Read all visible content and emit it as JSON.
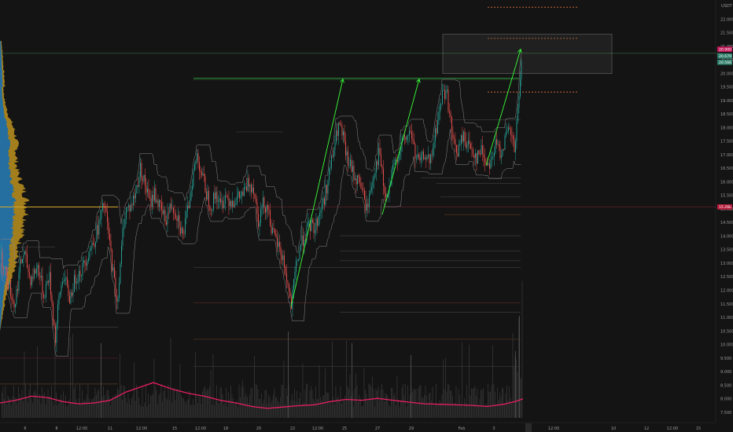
{
  "header": {
    "currency": "USDT"
  },
  "chart_data": {
    "type": "candlestick",
    "y_axis": {
      "ylim": [
        7.3,
        22.6
      ],
      "ticks": [
        "22.000",
        "21.500",
        "21.000",
        "20.500",
        "20.000",
        "19.500",
        "19.000",
        "18.500",
        "18.000",
        "17.500",
        "17.000",
        "16.500",
        "16.000",
        "15.500",
        "15.000",
        "14.500",
        "14.000",
        "13.500",
        "13.000",
        "12.500",
        "12.000",
        "11.500",
        "11.000",
        "10.500",
        "10.000",
        "9.500",
        "9.000",
        "8.500",
        "8.000",
        "7.500"
      ]
    },
    "x_axis": {
      "labels": [
        "6",
        "8",
        "12:00",
        "11",
        "12:00",
        "15",
        "12:00",
        "18",
        "20",
        "22",
        "12:00",
        "25",
        "27",
        "29",
        "Feb",
        "3",
        "5",
        "12:00",
        "10",
        "12",
        "12:00",
        "15"
      ],
      "label_positions": [
        32,
        72,
        104,
        140,
        180,
        222,
        255,
        287,
        329,
        372,
        404,
        438,
        480,
        523,
        587,
        628,
        673,
        704,
        780,
        822,
        855,
        888
      ],
      "plot_right": 668
    },
    "price_badges": [
      {
        "value": "20.900",
        "color": "#c2185b"
      },
      {
        "value": "20.679",
        "color": "#2e7d6b"
      },
      {
        "value": "20.566",
        "color": "#2e7d6b"
      },
      {
        "value": "15.26k",
        "color": "#b71c3c"
      }
    ],
    "current_price": 20.9,
    "poc_price": 15.08,
    "price_path": [
      [
        0,
        13.4
      ],
      [
        10,
        12.3
      ],
      [
        18,
        11.4
      ],
      [
        25,
        12.9
      ],
      [
        30,
        13.4
      ],
      [
        38,
        12.4
      ],
      [
        48,
        12.9
      ],
      [
        55,
        11.8
      ],
      [
        62,
        12.6
      ],
      [
        70,
        10.2
      ],
      [
        74,
        11.6
      ],
      [
        80,
        12.6
      ],
      [
        88,
        11.7
      ],
      [
        96,
        12.5
      ],
      [
        104,
        12.8
      ],
      [
        112,
        13.4
      ],
      [
        120,
        13.9
      ],
      [
        127,
        14.6
      ],
      [
        132,
        15.2
      ],
      [
        136,
        14.4
      ],
      [
        142,
        13.0
      ],
      [
        148,
        11.6
      ],
      [
        152,
        12.6
      ],
      [
        156,
        14.4
      ],
      [
        160,
        15.0
      ],
      [
        166,
        15.1
      ],
      [
        172,
        15.6
      ],
      [
        178,
        16.5
      ],
      [
        184,
        15.9
      ],
      [
        190,
        15.2
      ],
      [
        196,
        15.6
      ],
      [
        202,
        15.1
      ],
      [
        210,
        14.6
      ],
      [
        218,
        15.2
      ],
      [
        226,
        14.7
      ],
      [
        232,
        14.0
      ],
      [
        238,
        14.9
      ],
      [
        244,
        16.1
      ],
      [
        250,
        17.0
      ],
      [
        256,
        16.3
      ],
      [
        262,
        15.6
      ],
      [
        268,
        15.1
      ],
      [
        274,
        15.6
      ],
      [
        280,
        15.1
      ],
      [
        286,
        15.5
      ],
      [
        294,
        15.3
      ],
      [
        302,
        15.4
      ],
      [
        310,
        15.6
      ],
      [
        316,
        16.0
      ],
      [
        322,
        15.8
      ],
      [
        328,
        14.6
      ],
      [
        334,
        15.2
      ],
      [
        340,
        15.1
      ],
      [
        346,
        14.1
      ],
      [
        354,
        13.6
      ],
      [
        360,
        13.1
      ],
      [
        366,
        12.1
      ],
      [
        370,
        11.4
      ],
      [
        376,
        12.9
      ],
      [
        382,
        13.7
      ],
      [
        388,
        14.1
      ],
      [
        394,
        14.4
      ],
      [
        400,
        14.3
      ],
      [
        406,
        14.9
      ],
      [
        412,
        15.4
      ],
      [
        418,
        16.3
      ],
      [
        424,
        17.2
      ],
      [
        430,
        18.1
      ],
      [
        436,
        17.6
      ],
      [
        440,
        16.9
      ],
      [
        446,
        16.5
      ],
      [
        452,
        16.1
      ],
      [
        458,
        16.0
      ],
      [
        462,
        15.4
      ],
      [
        466,
        15.0
      ],
      [
        470,
        15.6
      ],
      [
        476,
        16.5
      ],
      [
        482,
        17.1
      ],
      [
        488,
        15.6
      ],
      [
        492,
        15.3
      ],
      [
        498,
        16.3
      ],
      [
        504,
        16.9
      ],
      [
        510,
        17.4
      ],
      [
        516,
        17.6
      ],
      [
        522,
        17.9
      ],
      [
        528,
        16.9
      ],
      [
        534,
        16.7
      ],
      [
        540,
        17.1
      ],
      [
        546,
        16.6
      ],
      [
        552,
        17.6
      ],
      [
        558,
        18.6
      ],
      [
        563,
        19.4
      ],
      [
        568,
        19.2
      ],
      [
        572,
        18.3
      ],
      [
        576,
        17.4
      ],
      [
        582,
        17.1
      ],
      [
        588,
        17.7
      ],
      [
        594,
        17.4
      ],
      [
        600,
        17.2
      ],
      [
        606,
        16.9
      ],
      [
        612,
        17.2
      ],
      [
        618,
        16.7
      ],
      [
        624,
        16.8
      ],
      [
        630,
        17.4
      ],
      [
        636,
        17.1
      ],
      [
        642,
        17.6
      ],
      [
        648,
        17.9
      ],
      [
        654,
        17.1
      ],
      [
        658,
        18.6
      ],
      [
        661,
        19.6
      ],
      [
        664,
        20.9
      ]
    ],
    "trend_arrows": [
      {
        "from": [
          370,
          11.4
        ],
        "to": [
          436,
          19.8
        ]
      },
      {
        "from": [
          486,
          14.8
        ],
        "to": [
          533,
          19.8
        ]
      },
      {
        "from": [
          618,
          16.6
        ],
        "to": [
          662,
          20.9
        ]
      }
    ],
    "resistance_line": {
      "price": 19.83,
      "x_from": 246,
      "x_to": 660
    },
    "range_box": {
      "x": [
        563,
        778
      ],
      "price": [
        20.0,
        21.45
      ]
    },
    "dashed_levels": [
      {
        "price": 22.45,
        "x_from": 620,
        "x_to": 735
      },
      {
        "price": 21.3,
        "x_from": 620,
        "x_to": 735
      },
      {
        "price": 19.32,
        "x_from": 620,
        "x_to": 735
      }
    ],
    "horizontal_levels": [
      {
        "price": 20.75,
        "x_from": 0,
        "x_to": 918,
        "color": "#2e5d3a"
      },
      {
        "price": 15.08,
        "x_from": 0,
        "x_to": 918,
        "color": "#5b1f2a"
      },
      {
        "price": 18.3,
        "x_from": 575,
        "x_to": 662,
        "color": "#3a3a3a"
      },
      {
        "price": 17.85,
        "x_from": 300,
        "x_to": 360,
        "color": "#3a3a3a"
      },
      {
        "price": 16.15,
        "x_from": 535,
        "x_to": 662,
        "color": "#3a3a3a"
      },
      {
        "price": 15.95,
        "x_from": 555,
        "x_to": 662,
        "color": "#3a3a3a"
      },
      {
        "price": 15.45,
        "x_from": 560,
        "x_to": 662,
        "color": "#3a3a3a"
      },
      {
        "price": 14.8,
        "x_from": 565,
        "x_to": 662,
        "color": "#6a3b2a"
      },
      {
        "price": 14.02,
        "x_from": 432,
        "x_to": 662,
        "color": "#3a3a3a"
      },
      {
        "price": 13.45,
        "x_from": 432,
        "x_to": 662,
        "color": "#3a3a3a"
      },
      {
        "price": 13.1,
        "x_from": 432,
        "x_to": 662,
        "color": "#3a3a3a"
      },
      {
        "price": 12.85,
        "x_from": 246,
        "x_to": 662,
        "color": "#3a3a3a"
      },
      {
        "price": 11.55,
        "x_from": 246,
        "x_to": 662,
        "color": "#5b2a22"
      },
      {
        "price": 11.2,
        "x_from": 432,
        "x_to": 662,
        "color": "#3a3a3a"
      },
      {
        "price": 10.2,
        "x_from": 246,
        "x_to": 662,
        "color": "#5b3a22"
      },
      {
        "price": 9.2,
        "x_from": 246,
        "x_to": 662,
        "color": "#3a3a3a"
      },
      {
        "price": 10.65,
        "x_from": 0,
        "x_to": 150,
        "color": "#3a3a3a"
      },
      {
        "price": 9.5,
        "x_from": 0,
        "x_to": 150,
        "color": "#5b1f2a"
      },
      {
        "price": 8.55,
        "x_from": 0,
        "x_to": 150,
        "color": "#5b3a22"
      },
      {
        "price": 13.6,
        "x_from": 0,
        "x_to": 70,
        "color": "#3a3a3a"
      }
    ],
    "volume_ma": [
      [
        0,
        7.85
      ],
      [
        20,
        7.95
      ],
      [
        40,
        8.1
      ],
      [
        60,
        8.05
      ],
      [
        80,
        7.9
      ],
      [
        100,
        7.82
      ],
      [
        120,
        7.85
      ],
      [
        140,
        7.95
      ],
      [
        160,
        8.25
      ],
      [
        180,
        8.45
      ],
      [
        195,
        8.6
      ],
      [
        205,
        8.5
      ],
      [
        220,
        8.35
      ],
      [
        240,
        8.2
      ],
      [
        260,
        8.1
      ],
      [
        280,
        7.95
      ],
      [
        300,
        7.85
      ],
      [
        320,
        7.72
      ],
      [
        340,
        7.65
      ],
      [
        360,
        7.7
      ],
      [
        380,
        7.75
      ],
      [
        400,
        7.78
      ],
      [
        420,
        7.9
      ],
      [
        440,
        7.98
      ],
      [
        460,
        7.95
      ],
      [
        480,
        8.02
      ],
      [
        500,
        7.95
      ],
      [
        520,
        7.88
      ],
      [
        540,
        7.82
      ],
      [
        560,
        7.8
      ],
      [
        580,
        7.78
      ],
      [
        600,
        7.76
      ],
      [
        620,
        7.72
      ],
      [
        640,
        7.8
      ],
      [
        655,
        7.9
      ],
      [
        665,
        8.0
      ]
    ],
    "colors": {
      "background": "#141414",
      "bull": "#26a69a",
      "bear": "#ef5350",
      "arrow": "#39ff3a",
      "volume_ma": "#e91e63",
      "profile_blue": "#1f6fa8",
      "profile_gold": "#b38a1e",
      "dashed": "#e0703a"
    }
  }
}
